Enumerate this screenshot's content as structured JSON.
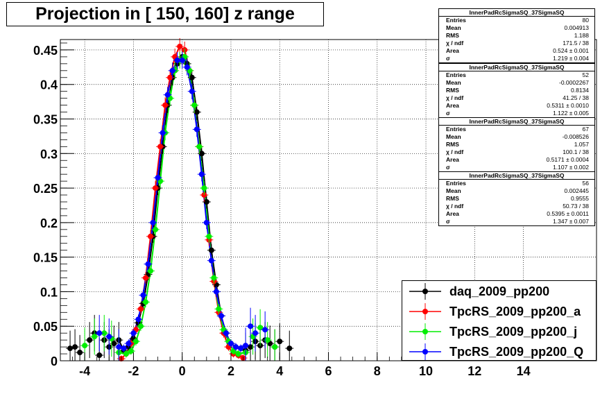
{
  "chart_data": {
    "type": "scatter",
    "title": "Projection in [ 150, 160] z range",
    "xlim": [
      -5,
      17
    ],
    "ylim": [
      0,
      0.465
    ],
    "x_ticks": [
      "-4",
      "-2",
      "0",
      "2",
      "4",
      "6",
      "8",
      "10",
      "12",
      "14"
    ],
    "x_tick_values": [
      -4,
      -2,
      0,
      2,
      4,
      6,
      8,
      10,
      12,
      14
    ],
    "y_ticks": [
      "0",
      "0.05",
      "0.1",
      "0.15",
      "0.2",
      "0.25",
      "0.3",
      "0.35",
      "0.4",
      "0.45"
    ],
    "y_tick_values": [
      0,
      0.05,
      0.1,
      0.15,
      0.2,
      0.25,
      0.3,
      0.35,
      0.4,
      0.45
    ],
    "grid": true,
    "legend_position": "bottom-right",
    "series": [
      {
        "name": "daq_2009_pp200",
        "color": "#000000",
        "x": [
          -4.6,
          -4.4,
          -4.2,
          -3.8,
          -3.6,
          -3.4,
          -3.2,
          -3.0,
          -2.8,
          -2.6,
          -2.4,
          -2.2,
          -2.0,
          -1.8,
          -1.6,
          -1.4,
          -1.2,
          -1.0,
          -0.8,
          -0.6,
          -0.4,
          -0.2,
          0.0,
          0.2,
          0.4,
          0.6,
          0.8,
          1.0,
          1.2,
          1.4,
          1.6,
          1.8,
          2.0,
          2.2,
          2.4,
          2.6,
          2.8,
          3.0,
          3.2,
          3.4,
          3.6,
          3.8,
          4.0,
          4.4
        ],
        "y": [
          0.018,
          0.02,
          0.012,
          0.03,
          0.04,
          0.008,
          0.03,
          0.02,
          0.025,
          0.03,
          0.015,
          0.02,
          0.032,
          0.055,
          0.083,
          0.125,
          0.18,
          0.25,
          0.31,
          0.37,
          0.41,
          0.43,
          0.44,
          0.43,
          0.41,
          0.36,
          0.3,
          0.23,
          0.16,
          0.11,
          0.065,
          0.04,
          0.025,
          0.02,
          0.018,
          0.015,
          0.02,
          0.028,
          0.022,
          0.03,
          0.025,
          0.02,
          0.028,
          0.018
        ]
      },
      {
        "name": "TpcRS_2009_pp200_a",
        "color": "#ff0000",
        "x": [
          -2.5,
          -2.3,
          -2.1,
          -1.9,
          -1.7,
          -1.5,
          -1.3,
          -1.1,
          -0.9,
          -0.7,
          -0.5,
          -0.3,
          -0.1,
          0.1,
          0.3,
          0.5,
          0.7,
          0.9,
          1.1,
          1.3,
          1.5,
          1.7,
          1.9,
          2.1,
          2.3,
          2.5
        ],
        "y": [
          0.003,
          0.01,
          0.025,
          0.045,
          0.075,
          0.12,
          0.18,
          0.25,
          0.31,
          0.37,
          0.41,
          0.44,
          0.455,
          0.45,
          0.42,
          0.37,
          0.31,
          0.24,
          0.175,
          0.115,
          0.07,
          0.04,
          0.02,
          0.01,
          0.008,
          0.004
        ]
      },
      {
        "name": "TpcRS_2009_pp200_j",
        "color": "#00ee00",
        "x": [
          -4.0,
          -3.6,
          -3.2,
          -2.9,
          -2.6,
          -2.3,
          -2.1,
          -1.9,
          -1.7,
          -1.5,
          -1.3,
          -1.1,
          -0.9,
          -0.7,
          -0.5,
          -0.3,
          -0.1,
          0.1,
          0.3,
          0.5,
          0.7,
          0.9,
          1.1,
          1.3,
          1.5,
          1.7,
          1.9,
          2.1,
          2.3,
          2.6,
          2.9,
          3.2,
          3.5,
          3.8
        ],
        "y": [
          0.022,
          0.035,
          0.04,
          0.032,
          0.012,
          0.01,
          0.014,
          0.028,
          0.05,
          0.085,
          0.13,
          0.19,
          0.26,
          0.33,
          0.38,
          0.42,
          0.435,
          0.44,
          0.42,
          0.37,
          0.31,
          0.25,
          0.18,
          0.12,
          0.075,
          0.045,
          0.028,
          0.014,
          0.01,
          0.012,
          0.035,
          0.048,
          0.03,
          0.02
        ]
      },
      {
        "name": "TpcRS_2009_pp200_Q",
        "color": "#0000ff",
        "x": [
          -3.4,
          -3.0,
          -2.6,
          -2.4,
          -2.2,
          -2.0,
          -1.8,
          -1.6,
          -1.4,
          -1.2,
          -1.0,
          -0.8,
          -0.6,
          -0.4,
          -0.2,
          0.0,
          0.2,
          0.4,
          0.6,
          0.8,
          1.0,
          1.2,
          1.4,
          1.6,
          1.8,
          2.0,
          2.2,
          2.4,
          2.6,
          2.8,
          3.0,
          3.4
        ],
        "y": [
          0.04,
          0.035,
          0.02,
          0.018,
          0.025,
          0.04,
          0.06,
          0.095,
          0.14,
          0.2,
          0.265,
          0.33,
          0.385,
          0.42,
          0.435,
          0.435,
          0.425,
          0.39,
          0.335,
          0.27,
          0.2,
          0.145,
          0.1,
          0.065,
          0.04,
          0.025,
          0.02,
          0.018,
          0.022,
          0.05,
          0.04,
          0.045
        ]
      }
    ],
    "stats_boxes": [
      {
        "title": "InnerPadRcSigmaSQ_37SigmaSQ",
        "rows": [
          [
            "Entries",
            "80"
          ],
          [
            "Mean",
            "0.004913"
          ],
          [
            "RMS",
            "1.188"
          ],
          [
            "χ  / ndf",
            "171.5 / 38"
          ],
          [
            "Area",
            "0.524 ± 0.001"
          ],
          [
            "σ",
            "1.219 ± 0.004"
          ]
        ]
      },
      {
        "title": "InnerPadRcSigmaSQ_37SigmaSQ",
        "rows": [
          [
            "Entries",
            "52"
          ],
          [
            "Mean",
            "-0.0002267"
          ],
          [
            "RMS",
            "0.8134"
          ],
          [
            "χ  / ndf",
            "41.25 / 38"
          ],
          [
            "Area",
            "0.5311 ± 0.0010"
          ],
          [
            "σ",
            "1.122 ± 0.005"
          ]
        ]
      },
      {
        "title": "InnerPadRcSigmaSQ_37SigmaSQ",
        "rows": [
          [
            "Entries",
            "67"
          ],
          [
            "Mean",
            "-0.008526"
          ],
          [
            "RMS",
            "1.057"
          ],
          [
            "χ  / ndf",
            "100.1 / 38"
          ],
          [
            "Area",
            "0.5171 ± 0.0004"
          ],
          [
            "σ",
            "1.107 ± 0.002"
          ]
        ]
      },
      {
        "title": "InnerPadRcSigmaSQ_37SigmaSQ",
        "rows": [
          [
            "Entries",
            "56"
          ],
          [
            "Mean",
            "0.002445"
          ],
          [
            "RMS",
            "0.9555"
          ],
          [
            "χ  / ndf",
            "50.73 / 38"
          ],
          [
            "Area",
            "0.5395 ± 0.0011"
          ],
          [
            "σ",
            "1.347 ± 0.007"
          ]
        ]
      }
    ]
  }
}
